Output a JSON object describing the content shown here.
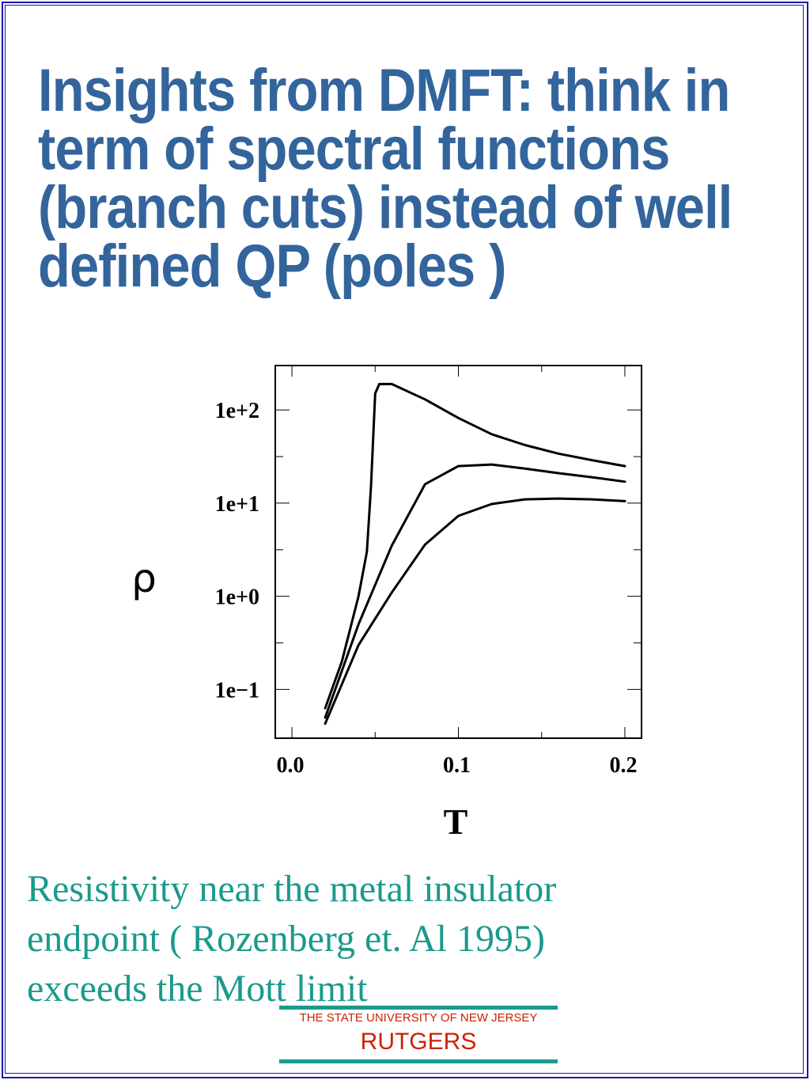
{
  "title_lines": [
    "Insights from DMFT: think in",
    "term of  spectral functions",
    "(branch cuts) instead of well",
    "defined QP (poles )"
  ],
  "chart_data": {
    "type": "line",
    "xlabel": "T",
    "ylabel": "ρ",
    "y_scale": "log",
    "xlim": [
      -0.01,
      0.21
    ],
    "ylim": [
      0.03,
      300
    ],
    "x_ticks": [
      "0.0",
      "0.1",
      "0.2"
    ],
    "y_ticks": [
      "1e+2",
      "1e+1",
      "1e+0",
      "1e−1"
    ],
    "grid": false,
    "series": [
      {
        "points": [
          [
            0.02,
            0.063
          ],
          [
            0.03,
            0.2
          ],
          [
            0.04,
            1.0
          ],
          [
            0.045,
            3.0
          ],
          [
            0.0475,
            15
          ],
          [
            0.05,
            150
          ],
          [
            0.0525,
            190
          ],
          [
            0.06,
            190
          ],
          [
            0.08,
            130
          ],
          [
            0.1,
            82
          ],
          [
            0.12,
            55
          ],
          [
            0.14,
            42
          ],
          [
            0.16,
            34
          ],
          [
            0.18,
            29
          ],
          [
            0.2,
            25
          ]
        ]
      },
      {
        "points": [
          [
            0.02,
            0.05
          ],
          [
            0.04,
            0.5
          ],
          [
            0.06,
            3.5
          ],
          [
            0.08,
            16
          ],
          [
            0.1,
            25
          ],
          [
            0.12,
            26
          ],
          [
            0.14,
            23.5
          ],
          [
            0.16,
            21
          ],
          [
            0.18,
            19
          ],
          [
            0.2,
            17
          ]
        ]
      },
      {
        "points": [
          [
            0.02,
            0.043
          ],
          [
            0.04,
            0.3
          ],
          [
            0.06,
            1.1
          ],
          [
            0.08,
            3.6
          ],
          [
            0.1,
            7.3
          ],
          [
            0.12,
            9.8
          ],
          [
            0.14,
            11
          ],
          [
            0.16,
            11.2
          ],
          [
            0.18,
            11
          ],
          [
            0.2,
            10.5
          ]
        ]
      }
    ]
  },
  "caption_lines": [
    "Resistivity near the metal insulator",
    "endpoint ( Rozenberg et.  Al 1995)",
    "exceeds the Mott limit"
  ],
  "footer": {
    "subtitle": "THE STATE UNIVERSITY OF NEW JERSEY",
    "name": "RUTGERS"
  },
  "colors": {
    "title": "#33659c",
    "caption": "#1a9a8c",
    "footer": "#cc2200",
    "frame": "#1a1aa8"
  }
}
